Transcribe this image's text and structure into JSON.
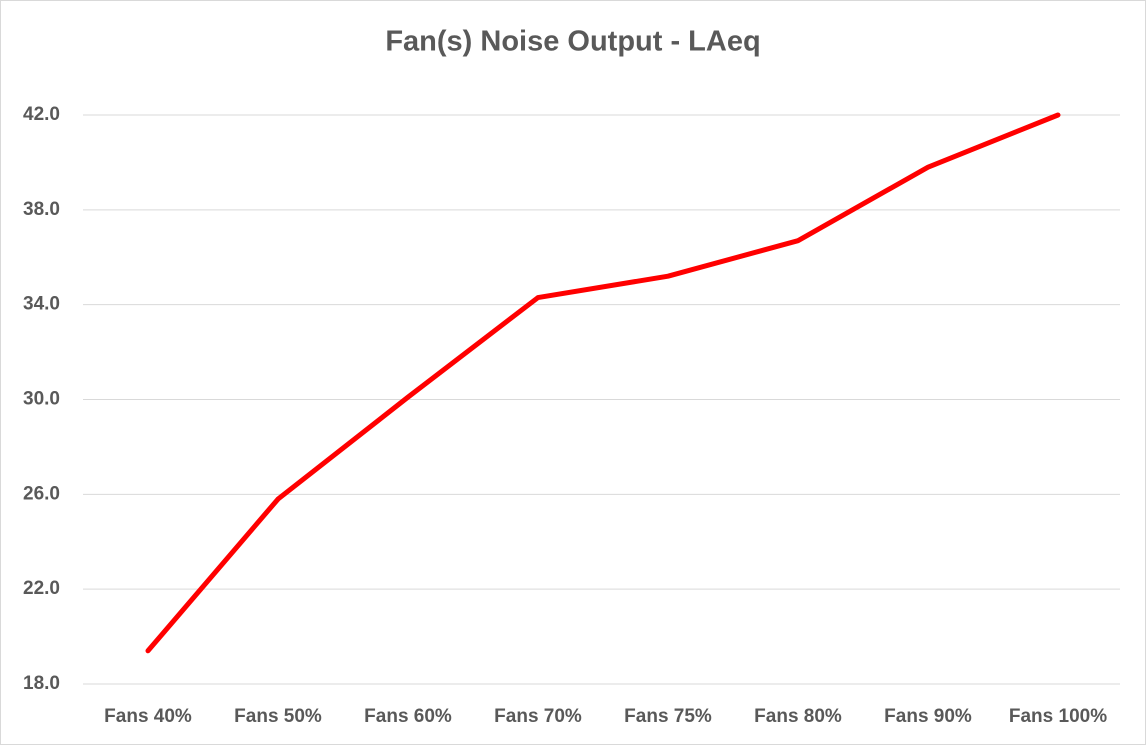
{
  "chart_data": {
    "type": "line",
    "title": "Fan(s) Noise Output - LAeq",
    "categories": [
      "Fans 40%",
      "Fans 50%",
      "Fans 60%",
      "Fans 70%",
      "Fans 75%",
      "Fans 80%",
      "Fans 90%",
      "Fans 100%"
    ],
    "values": [
      19.4,
      25.8,
      30.1,
      34.3,
      35.2,
      36.7,
      39.8,
      42.0
    ],
    "color": "#ff0000",
    "ylim": [
      18,
      42
    ],
    "yticks": [
      {
        "value": 18,
        "label": "18.0"
      },
      {
        "value": 22,
        "label": "22.0"
      },
      {
        "value": 26,
        "label": "26.0"
      },
      {
        "value": 30,
        "label": "30.0"
      },
      {
        "value": 34,
        "label": "34.0"
      },
      {
        "value": 38,
        "label": "38.0"
      },
      {
        "value": 42,
        "label": "42.0"
      }
    ],
    "grid": true
  }
}
